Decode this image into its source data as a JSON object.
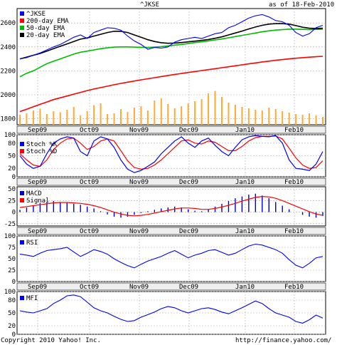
{
  "header": {
    "symbol": "^JKSE",
    "asof": "as of 18-Feb-2010"
  },
  "footer": {
    "copyright": "Copyright 2010 Yahoo! Inc.",
    "url": "http://finance.yahoo.com/"
  },
  "colors": {
    "price": "#0000ff",
    "ema200": "#ff0000",
    "ema50": "#00bb00",
    "ema20": "#000000",
    "volume": "#ffaa33",
    "grid": "#aaaaaa",
    "band": "#eeeeee",
    "macd": "#0000cc"
  },
  "chart_data": [
    {
      "type": "line",
      "panel": "price",
      "x_ticks": [
        "Sep09",
        "Oct09",
        "Nov09",
        "Dec09",
        "Jan10",
        "Feb10"
      ],
      "y_ticks": [
        1800,
        2000,
        2200,
        2400,
        2600
      ],
      "ylim": [
        1750,
        2720
      ],
      "legend": [
        "^JKSE",
        "200-day EMA",
        "50-day EMA",
        "20-day EMA"
      ],
      "series": [
        {
          "name": "^JKSE",
          "values": [
            2300,
            2310,
            2330,
            2350,
            2375,
            2400,
            2420,
            2450,
            2480,
            2500,
            2470,
            2520,
            2540,
            2560,
            2555,
            2540,
            2490,
            2450,
            2420,
            2380,
            2395,
            2390,
            2400,
            2440,
            2460,
            2470,
            2480,
            2470,
            2490,
            2510,
            2520,
            2560,
            2580,
            2610,
            2640,
            2660,
            2670,
            2650,
            2620,
            2610,
            2580,
            2520,
            2490,
            2510,
            2560,
            2580
          ]
        },
        {
          "name": "200-day EMA",
          "values": [
            1860,
            1880,
            1900,
            1920,
            1940,
            1960,
            1975,
            1990,
            2005,
            2020,
            2035,
            2048,
            2060,
            2072,
            2084,
            2095,
            2105,
            2115,
            2125,
            2134,
            2143,
            2152,
            2161,
            2170,
            2178,
            2186,
            2194,
            2202,
            2210,
            2218,
            2226,
            2234,
            2242,
            2250,
            2258,
            2266,
            2274,
            2281,
            2288,
            2294,
            2300,
            2305,
            2310,
            2314,
            2318,
            2321
          ]
        },
        {
          "name": "50-day EMA",
          "values": [
            2150,
            2180,
            2200,
            2230,
            2260,
            2280,
            2300,
            2320,
            2340,
            2355,
            2365,
            2375,
            2385,
            2392,
            2398,
            2400,
            2400,
            2398,
            2396,
            2395,
            2398,
            2402,
            2408,
            2415,
            2420,
            2428,
            2436,
            2442,
            2450,
            2458,
            2466,
            2476,
            2486,
            2496,
            2506,
            2516,
            2526,
            2534,
            2540,
            2544,
            2548,
            2548,
            2546,
            2544,
            2546,
            2548
          ]
        },
        {
          "name": "20-day EMA",
          "values": [
            2300,
            2315,
            2330,
            2345,
            2365,
            2385,
            2405,
            2425,
            2445,
            2465,
            2475,
            2490,
            2505,
            2520,
            2530,
            2530,
            2520,
            2500,
            2480,
            2460,
            2445,
            2435,
            2430,
            2432,
            2436,
            2442,
            2448,
            2454,
            2462,
            2472,
            2484,
            2500,
            2516,
            2532,
            2550,
            2566,
            2580,
            2590,
            2594,
            2594,
            2590,
            2578,
            2564,
            2556,
            2554,
            2556
          ]
        }
      ]
    },
    {
      "type": "bar",
      "panel": "volume",
      "series": [
        {
          "name": "volume",
          "values": [
            28,
            32,
            40,
            45,
            30,
            38,
            35,
            42,
            50,
            26,
            38,
            55,
            60,
            30,
            32,
            44,
            36,
            48,
            52,
            40,
            68,
            74,
            58,
            46,
            52,
            60,
            66,
            72,
            88,
            95,
            78,
            62,
            56,
            50,
            46,
            42,
            40,
            48,
            44,
            38,
            34,
            30,
            28,
            32,
            26,
            22
          ]
        }
      ],
      "ylim": [
        0,
        120
      ]
    },
    {
      "type": "line",
      "panel": "stochastic",
      "y_ticks": [
        0,
        20,
        50,
        80,
        100
      ],
      "ylim": [
        0,
        100
      ],
      "legend": [
        "Stoch %K",
        "Stoch %D"
      ],
      "series": [
        {
          "name": "Stoch %K",
          "values": [
            50,
            30,
            20,
            25,
            55,
            80,
            90,
            95,
            92,
            60,
            50,
            85,
            95,
            90,
            70,
            40,
            18,
            10,
            15,
            25,
            35,
            55,
            70,
            85,
            95,
            80,
            70,
            85,
            92,
            75,
            60,
            50,
            70,
            88,
            95,
            98,
            96,
            95,
            98,
            80,
            40,
            20,
            18,
            15,
            30,
            60
          ]
        },
        {
          "name": "Stoch %D",
          "values": [
            55,
            40,
            28,
            25,
            40,
            65,
            80,
            90,
            92,
            80,
            65,
            72,
            85,
            90,
            85,
            62,
            38,
            22,
            18,
            20,
            28,
            40,
            55,
            70,
            85,
            88,
            80,
            78,
            85,
            82,
            72,
            62,
            62,
            72,
            85,
            93,
            96,
            96,
            97,
            90,
            68,
            45,
            28,
            20,
            22,
            38
          ]
        }
      ]
    },
    {
      "type": "bar",
      "panel": "macd",
      "y_ticks": [
        -25,
        0,
        25,
        50
      ],
      "ylim": [
        -30,
        55
      ],
      "legend": [
        "MACD",
        "Signal"
      ],
      "series": [
        {
          "name": "MACD",
          "values": [
            5,
            10,
            15,
            20,
            22,
            24,
            22,
            20,
            18,
            16,
            12,
            8,
            2,
            -5,
            -10,
            -12,
            -10,
            -6,
            -2,
            2,
            5,
            8,
            10,
            12,
            10,
            6,
            3,
            2,
            6,
            12,
            18,
            24,
            30,
            34,
            38,
            40,
            36,
            30,
            22,
            14,
            6,
            0,
            -6,
            -10,
            -12,
            -8
          ]
        },
        {
          "name": "Signal",
          "values": [
            10,
            12,
            14,
            16,
            18,
            20,
            21,
            21,
            20,
            19,
            17,
            14,
            10,
            5,
            0,
            -4,
            -7,
            -8,
            -7,
            -5,
            -2,
            1,
            4,
            7,
            9,
            9,
            8,
            6,
            6,
            8,
            11,
            15,
            19,
            24,
            28,
            32,
            34,
            33,
            30,
            25,
            19,
            13,
            7,
            1,
            -4,
            -7
          ]
        }
      ]
    },
    {
      "type": "line",
      "panel": "rsi",
      "y_ticks": [
        0,
        25,
        50,
        75,
        100
      ],
      "ylim": [
        0,
        100
      ],
      "legend": [
        "RSI"
      ],
      "series": [
        {
          "name": "RSI",
          "values": [
            60,
            58,
            55,
            62,
            68,
            70,
            72,
            75,
            65,
            55,
            62,
            70,
            66,
            60,
            50,
            42,
            35,
            30,
            38,
            45,
            50,
            55,
            62,
            68,
            60,
            52,
            58,
            62,
            68,
            70,
            64,
            58,
            62,
            70,
            78,
            82,
            80,
            75,
            70,
            62,
            48,
            36,
            30,
            40,
            52,
            55
          ]
        }
      ]
    },
    {
      "type": "line",
      "panel": "mfi",
      "y_ticks": [
        0,
        20,
        50,
        80,
        100
      ],
      "ylim": [
        0,
        100
      ],
      "legend": [
        "MFI"
      ],
      "series": [
        {
          "name": "MFI",
          "values": [
            55,
            52,
            50,
            55,
            60,
            72,
            80,
            90,
            92,
            88,
            75,
            62,
            55,
            50,
            42,
            35,
            30,
            32,
            40,
            46,
            52,
            60,
            65,
            62,
            55,
            50,
            55,
            60,
            62,
            58,
            52,
            48,
            55,
            62,
            70,
            78,
            72,
            60,
            50,
            45,
            40,
            30,
            26,
            34,
            45,
            38
          ]
        }
      ]
    }
  ]
}
